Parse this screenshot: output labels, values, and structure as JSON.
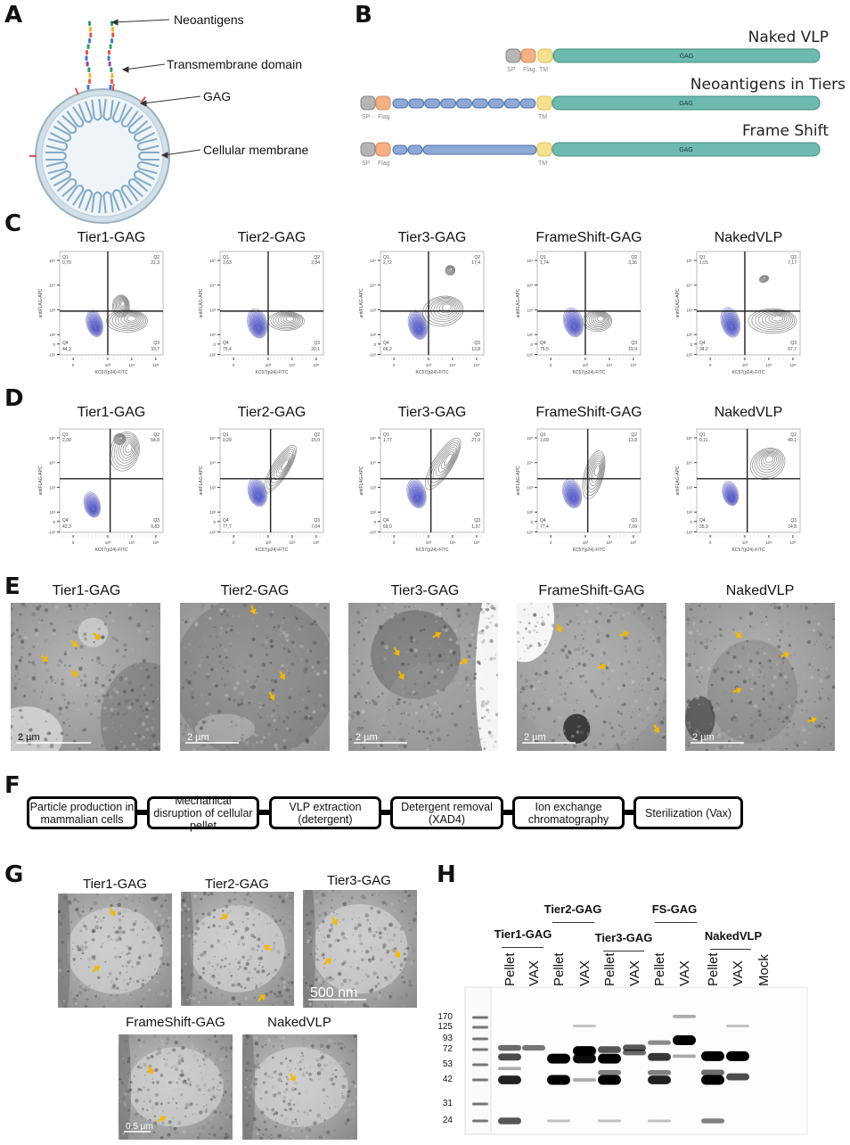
{
  "panels": [
    "A",
    "B",
    "C",
    "D",
    "E",
    "F",
    "G",
    "H"
  ],
  "panel_a": {
    "labels": [
      "Neoantigens",
      "Transmembrane domain",
      "GAG",
      "Cellular membrane"
    ]
  },
  "panel_b": {
    "constructs": [
      {
        "title": "Naked VLP",
        "segments": [
          "SP",
          "Flag",
          "TM",
          "GAG"
        ],
        "neoantigen_blocks": 0
      },
      {
        "title": "Neoantigens in Tiers",
        "segments": [
          "SP",
          "Flag",
          "TM",
          "GAG"
        ],
        "neoantigen_blocks": 9
      },
      {
        "title": "Frame Shift",
        "segments": [
          "SP",
          "Flag",
          "TM",
          "GAG"
        ],
        "neoantigen_blocks": 2,
        "long_block": true
      }
    ],
    "colors": {
      "SP": "#b5b5b5",
      "Flag": "#f4b183",
      "neoantigen": "#8fa9d6",
      "TM": "#f7e08f",
      "GAG": "#6dbbae"
    }
  },
  "flow": {
    "x_label": "KC57(p24)-FITC",
    "y_label": "antiFLAG-APC",
    "x_ticks": [
      {
        "v": 1.56,
        "t": "0"
      },
      {
        "v": 3,
        "t": "10³"
      },
      {
        "v": 4,
        "t": "10⁴"
      },
      {
        "v": 5,
        "t": "10⁵"
      }
    ],
    "y_ticks": [
      {
        "v": 1.2,
        "t": "-10²"
      },
      {
        "v": 1.62,
        "t": "0"
      },
      {
        "v": 2,
        "t": "10²"
      },
      {
        "v": 3,
        "t": "10³"
      },
      {
        "v": 4,
        "t": "10⁴"
      },
      {
        "v": 5,
        "t": "10⁵"
      }
    ],
    "x_range": [
      1.0,
      5.3
    ],
    "y_range": [
      1.18,
      5.36
    ],
    "quadrant_names": [
      "Q1",
      "Q2",
      "Q3",
      "Q4"
    ],
    "colors": {
      "gated": "#3a3fc8",
      "other": "#8a8a8a"
    },
    "rows": [
      {
        "letter": "C",
        "gate": [
          3.0,
          2.95
        ],
        "plots": [
          {
            "title": "Tier1-GAG",
            "q": [
              "0,70",
              "21,3",
              "33,7",
              "44,3"
            ],
            "pops": [
              {
                "c": "blue",
                "x": 2.45,
                "y": 2.45,
                "sx": 0.33,
                "sy": 0.55,
                "r": -15
              },
              {
                "c": "gray",
                "x": 3.55,
                "y": 3.15,
                "sx": 0.35,
                "sy": 0.45,
                "r": 0
              },
              {
                "c": "gray",
                "x": 3.8,
                "y": 2.55,
                "sx": 0.85,
                "sy": 0.45,
                "r": 0
              }
            ]
          },
          {
            "title": "Tier2-GAG",
            "q": [
              "1,63",
              "2,84",
              "20,1",
              "75,4"
            ],
            "pops": [
              {
                "c": "blue",
                "x": 2.55,
                "y": 2.45,
                "sx": 0.4,
                "sy": 0.6,
                "r": -15
              },
              {
                "c": "gray",
                "x": 3.75,
                "y": 2.55,
                "sx": 0.75,
                "sy": 0.38,
                "r": 0
              }
            ]
          },
          {
            "title": "Tier3-GAG",
            "q": [
              "2,72",
              "17,4",
              "13,8",
              "66,2"
            ],
            "pops": [
              {
                "c": "blue",
                "x": 2.55,
                "y": 2.4,
                "sx": 0.38,
                "sy": 0.6,
                "r": -15
              },
              {
                "c": "gray",
                "x": 3.6,
                "y": 2.95,
                "sx": 0.85,
                "sy": 0.6,
                "r": -10
              },
              {
                "c": "gray",
                "x": 3.9,
                "y": 4.6,
                "sx": 0.2,
                "sy": 0.2,
                "r": 0
              }
            ]
          },
          {
            "title": "FrameShift-GAG",
            "q": [
              "1,74",
              "3,36",
              "19,4",
              "75,5"
            ],
            "pops": [
              {
                "c": "blue",
                "x": 2.5,
                "y": 2.5,
                "sx": 0.4,
                "sy": 0.6,
                "r": -15
              },
              {
                "c": "gray",
                "x": 3.5,
                "y": 2.55,
                "sx": 0.6,
                "sy": 0.42,
                "r": 0
              }
            ]
          },
          {
            "title": "NakedVLP",
            "q": [
              "1,01",
              "7,17",
              "57,7",
              "34,2"
            ],
            "pops": [
              {
                "c": "blue",
                "x": 2.4,
                "y": 2.5,
                "sx": 0.38,
                "sy": 0.62,
                "r": -15
              },
              {
                "c": "gray",
                "x": 4.15,
                "y": 2.55,
                "sx": 1.0,
                "sy": 0.5,
                "r": 0
              },
              {
                "c": "gray",
                "x": 3.8,
                "y": 4.25,
                "sx": 0.2,
                "sy": 0.14,
                "r": -20
              }
            ]
          }
        ]
      },
      {
        "letter": "D",
        "gate": [
          3.1,
          3.35
        ],
        "plots": [
          {
            "title": "Tier1-GAG",
            "q": [
              "2,00",
              "54,8",
              "0,83",
              "42,3"
            ],
            "pops": [
              {
                "c": "blue",
                "x": 2.35,
                "y": 2.3,
                "sx": 0.33,
                "sy": 0.52,
                "r": -15
              },
              {
                "c": "gray",
                "x": 3.7,
                "y": 4.45,
                "sx": 0.6,
                "sy": 0.8,
                "r": 15
              },
              {
                "c": "gray",
                "x": 3.5,
                "y": 4.95,
                "sx": 0.25,
                "sy": 0.22,
                "r": 0
              }
            ]
          },
          {
            "title": "Tier2-GAG",
            "q": [
              "0,29",
              "15,0",
              "7,04",
              "77,7"
            ],
            "pops": [
              {
                "c": "blue",
                "x": 2.55,
                "y": 2.8,
                "sx": 0.38,
                "sy": 0.58,
                "r": -15
              },
              {
                "c": "gray",
                "x": 3.5,
                "y": 3.75,
                "sx": 0.35,
                "sy": 1.1,
                "r": 32
              }
            ]
          },
          {
            "title": "Tier3-GAG",
            "q": [
              "1,77",
              "27,9",
              "1,37",
              "69,0"
            ],
            "pops": [
              {
                "c": "blue",
                "x": 2.5,
                "y": 2.75,
                "sx": 0.38,
                "sy": 0.6,
                "r": -15
              },
              {
                "c": "gray",
                "x": 3.6,
                "y": 3.95,
                "sx": 0.4,
                "sy": 1.2,
                "r": 32
              }
            ]
          },
          {
            "title": "FrameShift-GAG",
            "q": [
              "1,69",
              "13,8",
              "7,09",
              "77,4"
            ],
            "pops": [
              {
                "c": "blue",
                "x": 2.45,
                "y": 2.75,
                "sx": 0.38,
                "sy": 0.6,
                "r": -15
              },
              {
                "c": "gray",
                "x": 3.35,
                "y": 3.5,
                "sx": 0.4,
                "sy": 1.0,
                "r": 15
              }
            ]
          },
          {
            "title": "NakedVLP",
            "q": [
              "0,11",
              "49,1",
              "14,8",
              "35,9"
            ],
            "pops": [
              {
                "c": "blue",
                "x": 2.4,
                "y": 2.75,
                "sx": 0.32,
                "sy": 0.5,
                "r": -15
              },
              {
                "c": "gray",
                "x": 3.95,
                "y": 3.95,
                "sx": 0.75,
                "sy": 0.6,
                "r": -30
              }
            ]
          }
        ]
      }
    ]
  },
  "panel_e": {
    "images": [
      {
        "title": "Tier1-GAG",
        "scale": "2  µm"
      },
      {
        "title": "Tier2-GAG",
        "scale": "2  µm"
      },
      {
        "title": "Tier3-GAG",
        "scale": "2  µm"
      },
      {
        "title": "FrameShift-GAG",
        "scale": "2  µm"
      },
      {
        "title": "NakedVLP",
        "scale": "2  µm"
      }
    ],
    "arrow_color": "#f5b800"
  },
  "panel_f": {
    "steps": [
      "Particle production in mammalian cells",
      "Mechanical disruption of cellular pellet",
      "VLP extraction (detergent)",
      "Detergent removal (XAD4)",
      "Ion exchange chromatography",
      "Sterilization (Vax)"
    ]
  },
  "panel_g": {
    "images": [
      {
        "title": "Tier1-GAG",
        "scale": ""
      },
      {
        "title": "Tier2-GAG",
        "scale": ""
      },
      {
        "title": "Tier3-GAG",
        "scale": "500  nm"
      },
      {
        "title": "FrameShift-GAG",
        "scale": "0.5 µm"
      },
      {
        "title": "NakedVLP",
        "scale": ""
      }
    ]
  },
  "panel_h": {
    "groups": [
      "Tier1-GAG",
      "Tier2-GAG",
      "Tier3-GAG",
      "FS-GAG",
      "NakedVLP"
    ],
    "lanes": [
      {
        "label": "Pellet",
        "bands": [
          [
            75,
            0.5
          ],
          [
            62,
            0.65
          ],
          [
            50,
            0.2
          ],
          [
            42,
            0.85
          ],
          [
            24,
            0.6
          ]
        ]
      },
      {
        "label": "VAX",
        "bands": [
          [
            75,
            0.45
          ]
        ]
      },
      {
        "label": "Pellet",
        "bands": [
          [
            60,
            1
          ],
          [
            42,
            1
          ],
          [
            24,
            0.1
          ]
        ]
      },
      {
        "label": "VAX",
        "bands": [
          [
            130,
            0.1
          ],
          [
            70,
            1
          ],
          [
            60,
            0.95
          ],
          [
            42,
            0.2
          ]
        ]
      },
      {
        "label": "Pellet",
        "bands": [
          [
            72,
            0.6
          ],
          [
            60,
            1
          ],
          [
            47,
            0.4
          ],
          [
            42,
            1
          ],
          [
            24,
            0.1
          ]
        ]
      },
      {
        "label": "VAX",
        "bands": [
          [
            75,
            0.6
          ],
          [
            68,
            0.5
          ]
        ]
      },
      {
        "label": "Pellet",
        "bands": [
          [
            85,
            0.35
          ],
          [
            62,
            0.75
          ],
          [
            47,
            0.4
          ],
          [
            42,
            0.85
          ],
          [
            24,
            0.1
          ]
        ]
      },
      {
        "label": "VAX",
        "bands": [
          [
            175,
            0.2
          ],
          [
            90,
            1
          ],
          [
            63,
            0.2
          ]
        ]
      },
      {
        "label": "Pellet",
        "bands": [
          [
            63,
            1
          ],
          [
            47,
            0.5
          ],
          [
            42,
            1
          ],
          [
            24,
            0.4
          ]
        ]
      },
      {
        "label": "VAX",
        "bands": [
          [
            130,
            0.1
          ],
          [
            63,
            1
          ],
          [
            44,
            0.65
          ]
        ]
      },
      {
        "label": "Mock",
        "bands": []
      }
    ],
    "markers": [
      "170",
      "125",
      "93",
      "72",
      "53",
      "42",
      "31",
      "24"
    ]
  }
}
